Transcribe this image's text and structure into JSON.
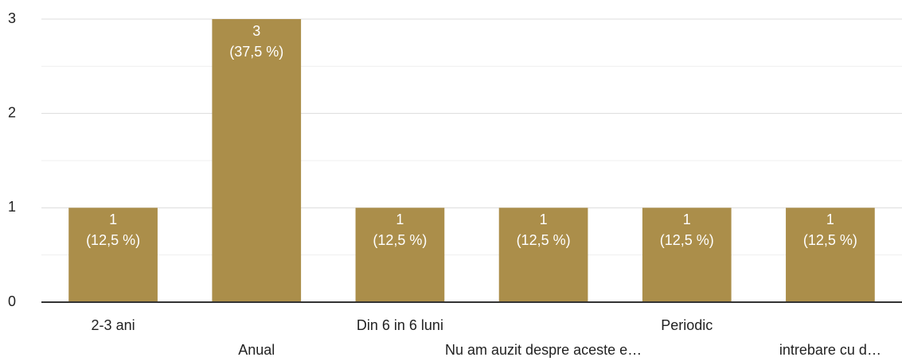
{
  "chart_data": {
    "type": "bar",
    "categories": [
      "2-3 ani",
      "Anual",
      "Din 6 in 6 luni",
      "Nu am auzit despre aceste e…",
      "Periodic",
      "intrebare cu d…"
    ],
    "values": [
      1,
      3,
      1,
      1,
      1,
      1
    ],
    "percent_labels": [
      "(12,5 %)",
      "(37,5 %)",
      "(12,5 %)",
      "(12,5 %)",
      "(12,5 %)",
      "(12,5 %)"
    ],
    "color": "#ab8e4a",
    "ylim": [
      0,
      3
    ],
    "yticks": [
      0,
      1,
      2,
      3
    ],
    "minor_yticks": [
      0.5,
      1.5,
      2.5
    ],
    "grid": true
  }
}
